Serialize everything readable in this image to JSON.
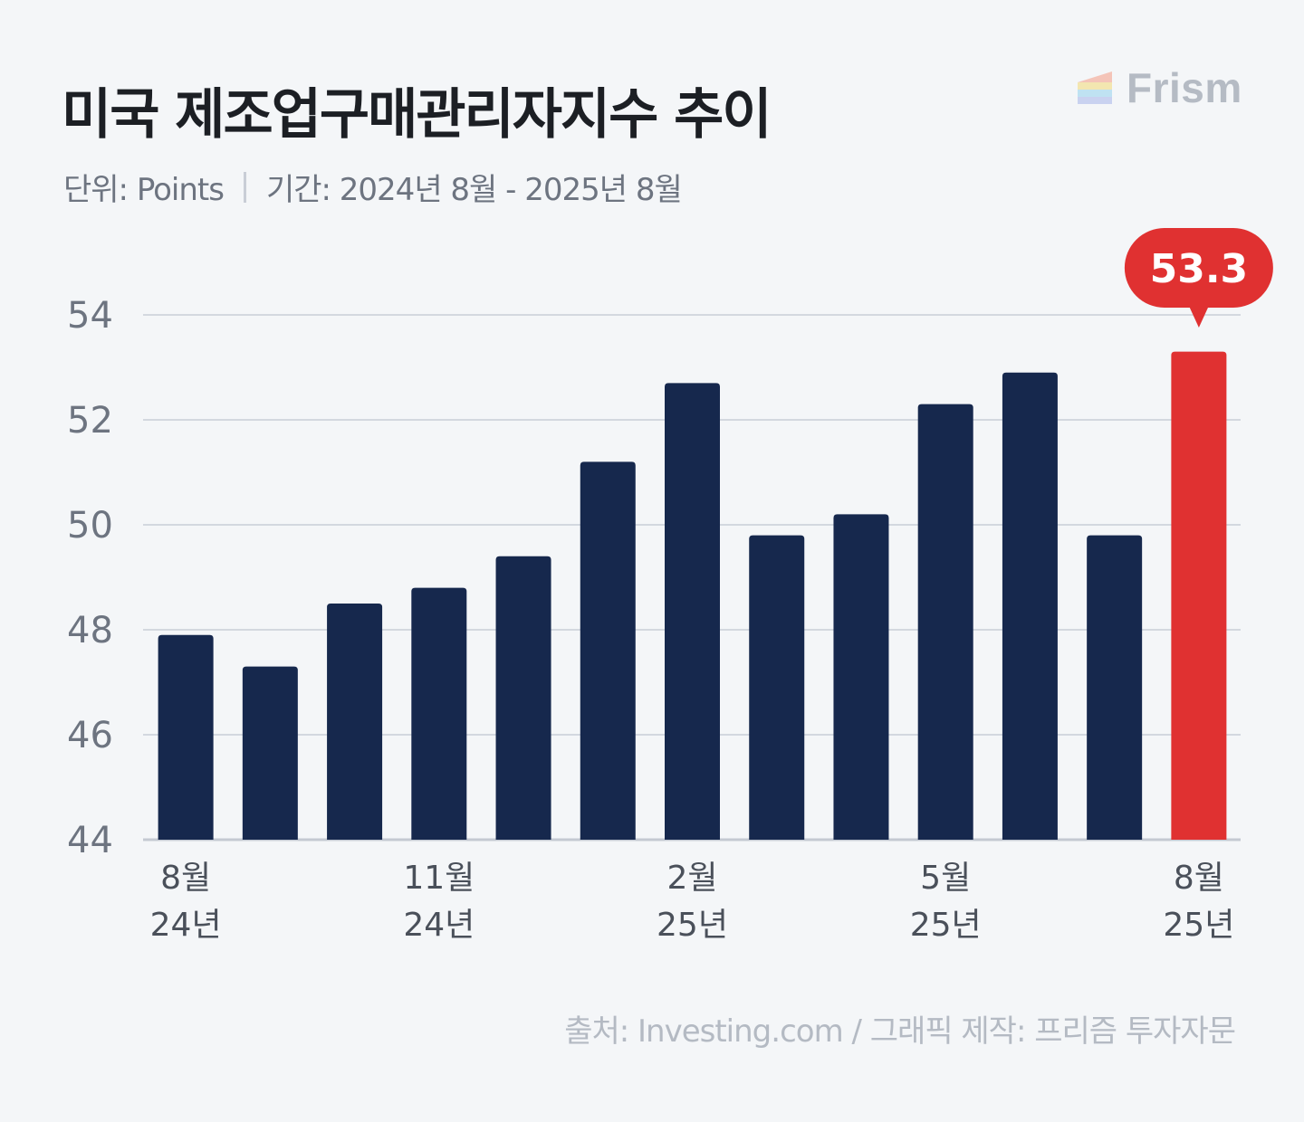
{
  "header": {
    "title": "미국 제조업구매관리자지수 추이",
    "unit": "단위: Points",
    "period": "기간: 2024년 8월 - 2025년 8월"
  },
  "brand": {
    "name": "Frism"
  },
  "footer": {
    "source": "출처: Investing.com  / 그래픽 제작: 프리즘 투자자문"
  },
  "colors": {
    "bar": "#16284d",
    "highlight": "#e03131",
    "grid": "#d3d8df",
    "axis_text": "#6d7480"
  },
  "chart_data": {
    "type": "bar",
    "categories": [
      "2024-08",
      "2024-09",
      "2024-10",
      "2024-11",
      "2024-12",
      "2025-01",
      "2025-02",
      "2025-03",
      "2025-04",
      "2025-05",
      "2025-06",
      "2025-07",
      "2025-08"
    ],
    "values": [
      47.9,
      47.3,
      48.5,
      48.8,
      49.4,
      51.2,
      52.7,
      49.8,
      50.2,
      52.3,
      52.9,
      49.8,
      53.3
    ],
    "ylim": [
      44,
      54
    ],
    "yticks": [
      "44",
      "46",
      "48",
      "50",
      "52",
      "54"
    ],
    "xtick_labels": [
      {
        "index": 0,
        "month": "8월",
        "year": "24년"
      },
      {
        "index": 3,
        "month": "11월",
        "year": "24년"
      },
      {
        "index": 6,
        "month": "2월",
        "year": "25년"
      },
      {
        "index": 9,
        "month": "5월",
        "year": "25년"
      },
      {
        "index": 12,
        "month": "8월",
        "year": "25년"
      }
    ],
    "highlight_index": 12,
    "callout": "53.3",
    "grid": true
  }
}
